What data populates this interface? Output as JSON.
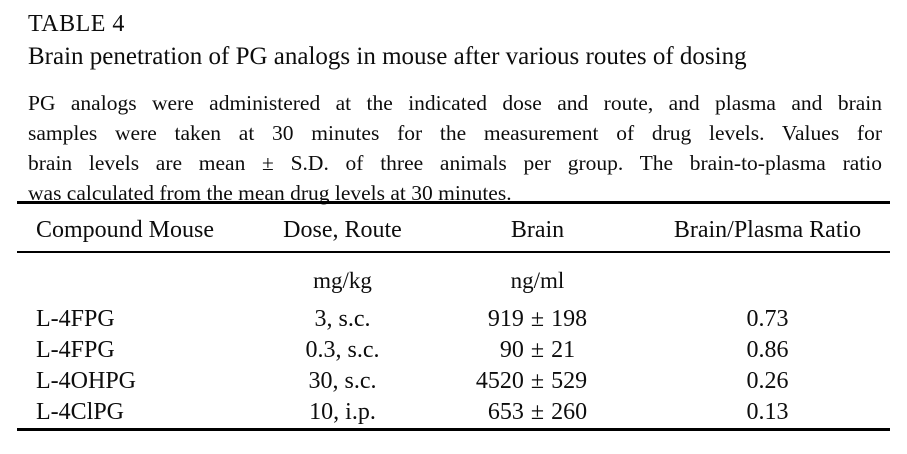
{
  "table_label": "TABLE 4",
  "title": "Brain penetration of PG analogs in mouse after various routes of dosing",
  "note": {
    "lines": [
      "PG analogs were administered at the indicated dose and route, and plasma and brain",
      "samples were taken at 30 minutes for the measurement of drug levels. Values for",
      "brain levels are mean ± S.D. of three animals per group. The brain-to-plasma ratio",
      "was calculated from the mean drug levels at 30 minutes."
    ]
  },
  "table": {
    "columns": [
      "Compound Mouse",
      "Dose, Route",
      "Brain",
      "Brain/Plasma Ratio"
    ],
    "units": {
      "dose": "mg/kg",
      "brain": "ng/ml"
    },
    "plus_minus": "±",
    "rows": [
      {
        "compound": "L-4FPG",
        "dose": "3, s.c.",
        "brain_mean": "919",
        "brain_sd": "198",
        "ratio": "0.73"
      },
      {
        "compound": "L-4FPG",
        "dose": "0.3, s.c.",
        "brain_mean": "90",
        "brain_sd": "21",
        "ratio": "0.86"
      },
      {
        "compound": "L-4OHPG",
        "dose": "30, s.c.",
        "brain_mean": "4520",
        "brain_sd": "529",
        "ratio": "0.26"
      },
      {
        "compound": "L-4ClPG",
        "dose": "10, i.p.",
        "brain_mean": "653",
        "brain_sd": "260",
        "ratio": "0.13"
      }
    ]
  },
  "colors": {
    "background": "#ffffff",
    "text": "#0d0d0d",
    "rule": "#000000"
  }
}
